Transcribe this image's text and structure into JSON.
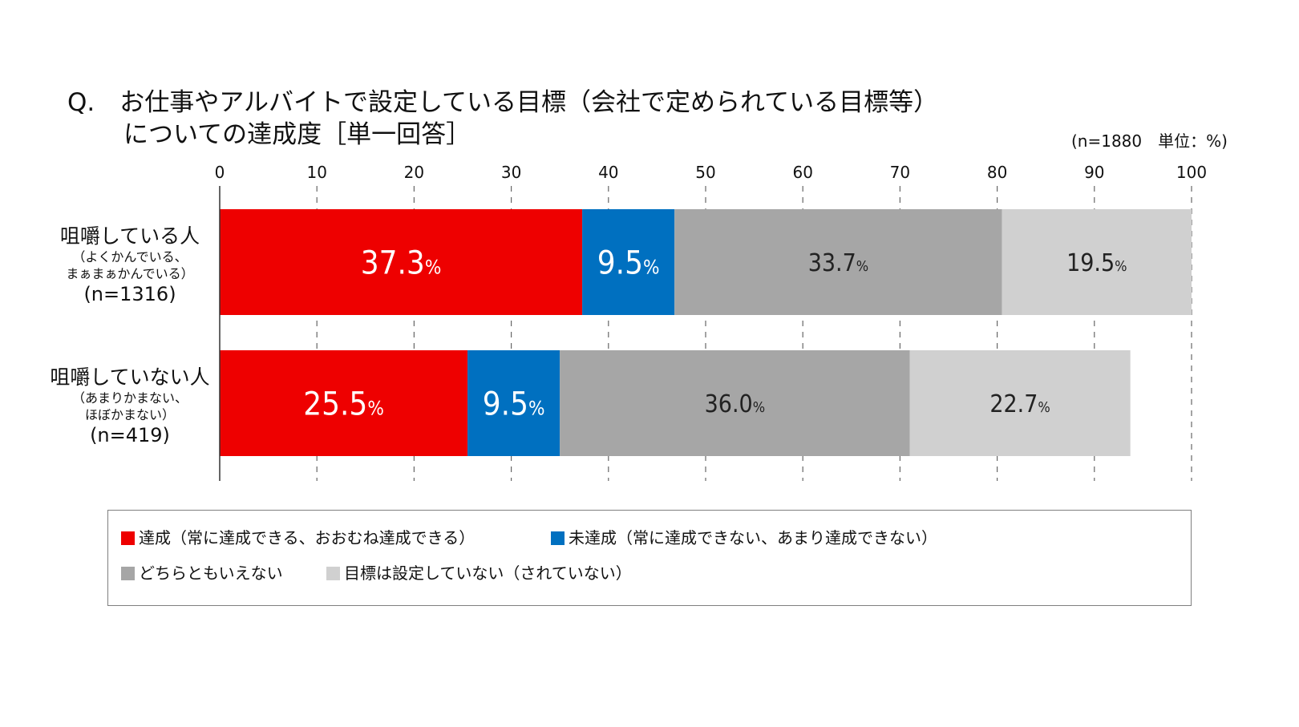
{
  "title": {
    "line1": "Q.　お仕事やアルバイトで設定している目標（会社で定められている目標等）",
    "line2": "についての達成度［単一回答］"
  },
  "note": "(n=1880　単位：%)",
  "chart_data": {
    "type": "bar",
    "orientation": "horizontal",
    "stacked": true,
    "xlim": [
      0,
      100
    ],
    "ticks": [
      0,
      10,
      20,
      30,
      40,
      50,
      60,
      70,
      80,
      90,
      100
    ],
    "unit_suffix": "%",
    "categories": [
      {
        "main": "咀嚼している人",
        "sub1": "（よくかんでいる、",
        "sub2": "まぁまぁかんでいる）",
        "n": "(n=1316)"
      },
      {
        "main": "咀嚼していない人",
        "sub1": "（あまりかまない、",
        "sub2": "ほぼかまない）",
        "n": "(n=419)"
      }
    ],
    "series": [
      {
        "name": "達成（常に達成できる、おおむね達成できる）",
        "color": "#ee0000",
        "label_color": "#ffffff",
        "values": [
          37.3,
          25.5
        ]
      },
      {
        "name": "未達成（常に達成できない、あまり達成できない）",
        "color": "#0070c0",
        "label_color": "#ffffff",
        "values": [
          9.5,
          9.5
        ]
      },
      {
        "name": "どちらともいえない",
        "color": "#a6a6a6",
        "label_color": "#222222",
        "values": [
          33.7,
          36.0
        ]
      },
      {
        "name": "目標は設定していない（されていない）",
        "color": "#d0d0d0",
        "label_color": "#222222",
        "values": [
          19.5,
          22.7
        ]
      }
    ]
  }
}
